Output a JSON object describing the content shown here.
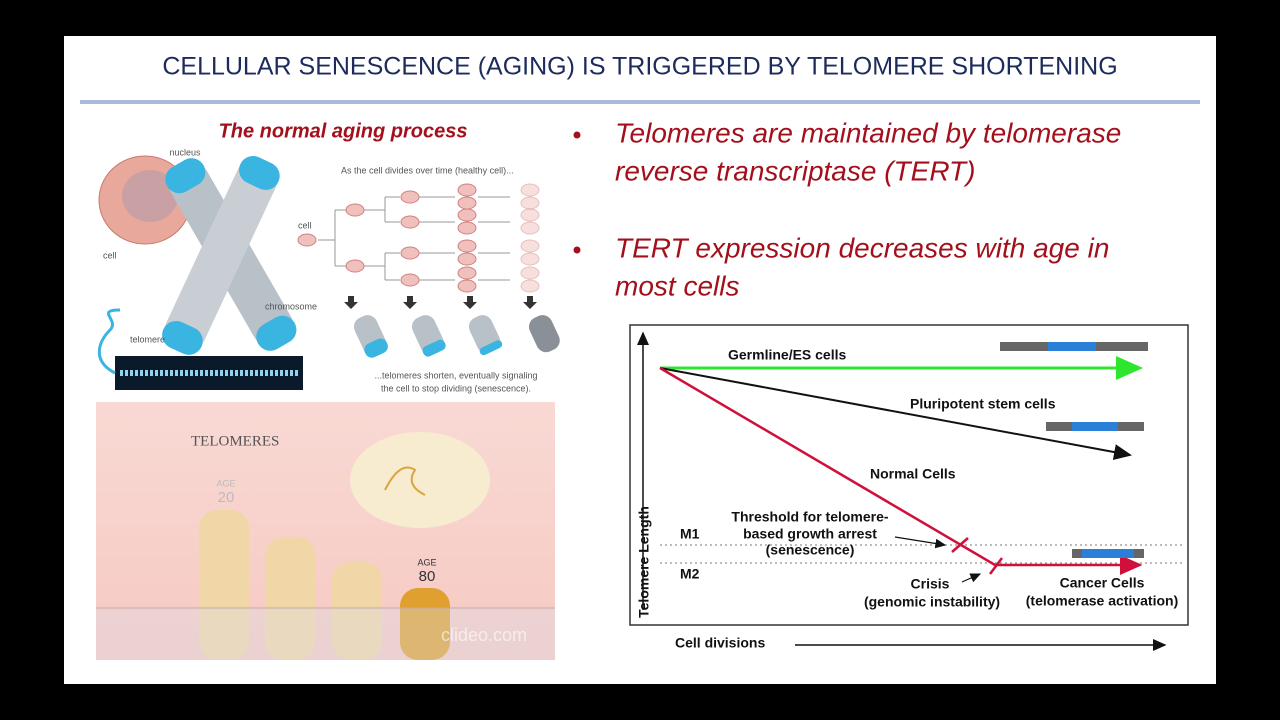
{
  "title": "CELLULAR SENESCENCE (AGING) IS TRIGGERED BY TELOMERE SHORTENING",
  "left": {
    "heading": "The normal aging process",
    "diagram": {
      "nucleus": "nucleus",
      "cell": "cell",
      "chromosome": "chromosome",
      "telomere": "telomere",
      "division_caption": "As the cell divides over time (healthy cell)...",
      "division_cell": "cell",
      "shorten_caption": [
        "...telomeres shorten, eventually signaling",
        "the cell to stop dividing (senescence)."
      ]
    },
    "video": {
      "title": "TELOMERES",
      "age_label_1": "AGE",
      "age_1": "20",
      "age_label_2": "AGE",
      "age_2": "80",
      "watermark": "clideo.com"
    }
  },
  "bullets": [
    [
      "Telomeres are maintained by telomerase",
      "reverse transcriptase (TERT)"
    ],
    [
      "TERT expression decreases with age in",
      "most cells"
    ]
  ],
  "figure": {
    "germline": "Germline/ES cells",
    "pluripotent": "Pluripotent stem cells",
    "normal": "Normal Cells",
    "threshold": [
      "Threshold for telomere-",
      "based growth arrest",
      "(senescence)"
    ],
    "m1": "M1",
    "m2": "M2",
    "crisis": "Crisis",
    "crisis_note": "(genomic instability)",
    "cancer": "Cancer Cells",
    "cancer_note": "(telomerase activation)",
    "y_axis": "Telomere Length",
    "x_axis": "Cell divisions"
  }
}
